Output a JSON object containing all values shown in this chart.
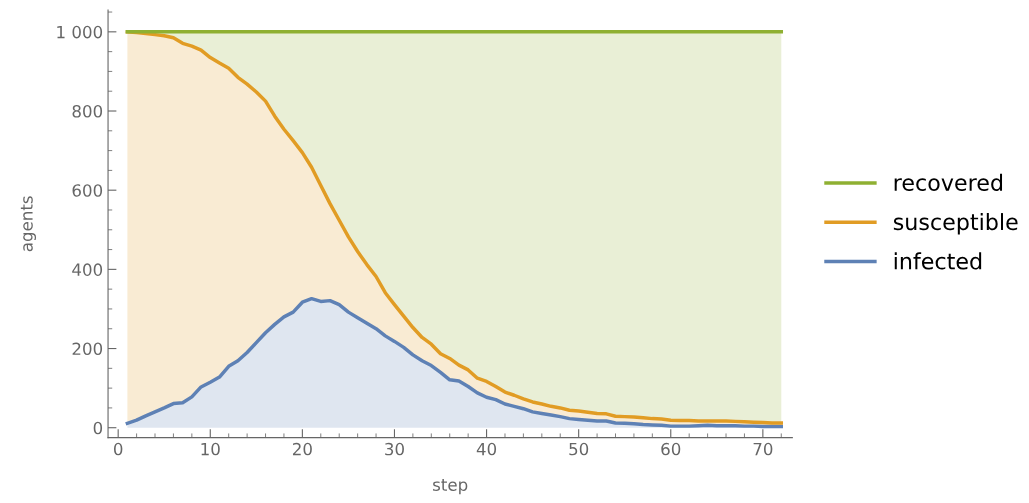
{
  "chart_data": {
    "type": "area",
    "stacked": true,
    "xlabel": "step",
    "ylabel": "agents",
    "x": [
      1,
      2,
      3,
      4,
      5,
      6,
      7,
      8,
      9,
      10,
      11,
      12,
      13,
      14,
      15,
      16,
      17,
      18,
      19,
      20,
      21,
      22,
      23,
      24,
      25,
      26,
      27,
      28,
      29,
      30,
      31,
      32,
      33,
      34,
      35,
      36,
      37,
      38,
      39,
      40,
      41,
      42,
      43,
      44,
      45,
      46,
      47,
      48,
      49,
      50,
      51,
      52,
      53,
      54,
      55,
      56,
      57,
      58,
      59,
      60,
      61,
      62,
      63,
      64,
      65,
      66,
      67,
      68,
      69,
      70,
      71,
      72
    ],
    "series": [
      {
        "name": "infected",
        "color": "#5e81b5",
        "values": [
          11,
          19,
          30,
          40,
          50,
          61,
          63,
          78,
          103,
          115,
          128,
          155,
          169,
          190,
          215,
          240,
          261,
          280,
          292,
          317,
          326,
          319,
          321,
          311,
          292,
          278,
          264,
          250,
          232,
          218,
          203,
          184,
          169,
          157,
          140,
          121,
          118,
          104,
          88,
          77,
          71,
          60,
          54,
          48,
          40,
          36,
          32,
          28,
          23,
          21,
          19,
          17,
          17,
          12,
          11,
          10,
          8,
          7,
          6,
          4,
          4,
          4,
          5,
          6,
          5,
          5,
          5,
          4,
          4,
          3,
          3,
          3
        ]
      },
      {
        "name": "susceptible",
        "color": "#e19c24",
        "values": [
          989,
          979,
          966,
          953,
          940,
          924,
          908,
          886,
          851,
          820,
          793,
          753,
          716,
          678,
          633,
          585,
          526,
          474,
          433,
          378,
          332,
          293,
          245,
          213,
          190,
          167,
          148,
          132,
          109,
          93,
          79,
          69,
          59,
          54,
          47,
          54,
          40,
          42,
          37,
          40,
          33,
          30,
          28,
          25,
          25,
          24,
          22,
          22,
          21,
          21,
          20,
          19,
          18,
          17,
          17,
          17,
          17,
          16,
          16,
          15,
          14,
          14,
          12,
          11,
          12,
          12,
          11,
          11,
          10,
          10,
          9,
          9
        ]
      },
      {
        "name": "recovered",
        "color": "#8fb032",
        "values": [
          0,
          2,
          4,
          7,
          10,
          15,
          29,
          36,
          46,
          65,
          79,
          92,
          115,
          132,
          152,
          175,
          213,
          246,
          275,
          305,
          342,
          388,
          434,
          476,
          518,
          555,
          588,
          618,
          659,
          689,
          718,
          747,
          772,
          789,
          813,
          825,
          842,
          854,
          875,
          883,
          896,
          910,
          918,
          927,
          935,
          940,
          946,
          950,
          956,
          958,
          961,
          964,
          965,
          971,
          972,
          973,
          975,
          977,
          978,
          981,
          982,
          982,
          983,
          983,
          983,
          983,
          984,
          985,
          986,
          987,
          988,
          988
        ]
      }
    ],
    "xlim": [
      -1.1,
      73.2
    ],
    "ylim": [
      -25,
      1055
    ],
    "xticks": [
      0,
      10,
      20,
      30,
      40,
      50,
      60,
      70
    ],
    "yticks": [
      0,
      200,
      400,
      600,
      800,
      {
        "value": 1000,
        "label": "1 000"
      }
    ],
    "grid": false,
    "legend": "right"
  }
}
